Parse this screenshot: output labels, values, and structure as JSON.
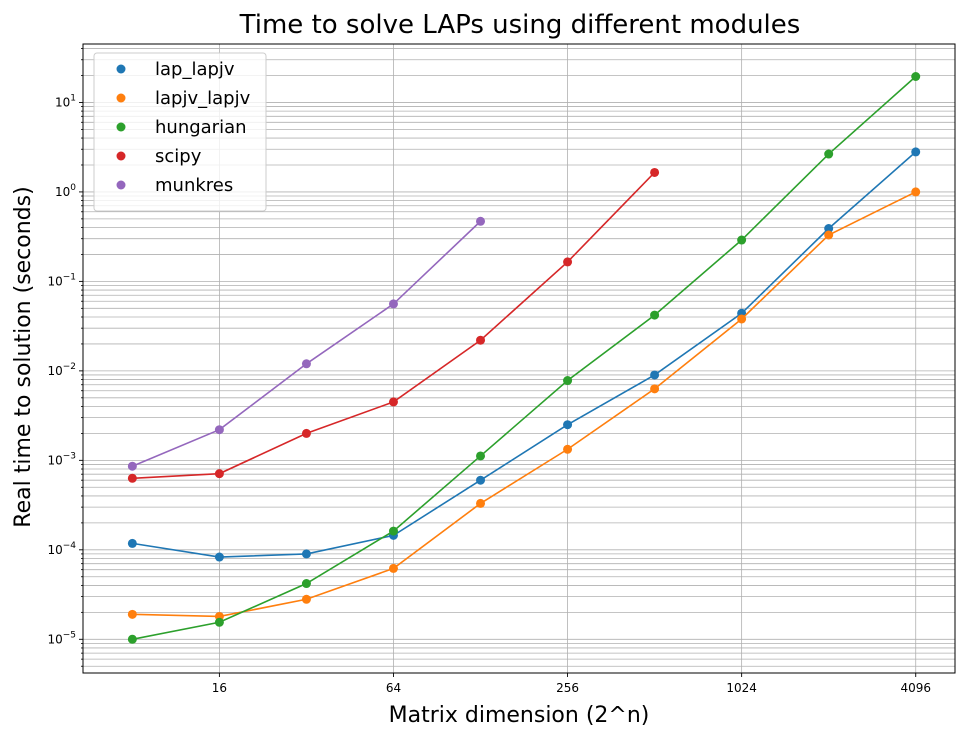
{
  "chart_data": {
    "type": "line",
    "title": "Time to solve LAPs using different modules",
    "xlabel": "Matrix dimension (2^n)",
    "ylabel": "Real time to solution (seconds)",
    "x_scale": "log2",
    "y_scale": "log10",
    "xlim": [
      5.4,
      5600
    ],
    "ylim": [
      4.2e-06,
      45
    ],
    "x_ticks": [
      {
        "value": 16,
        "label": "16"
      },
      {
        "value": 64,
        "label": "64"
      },
      {
        "value": 256,
        "label": "256"
      },
      {
        "value": 1024,
        "label": "1024"
      },
      {
        "value": 4096,
        "label": "4096"
      }
    ],
    "y_ticks": [
      {
        "value": 1e-05,
        "base": "10",
        "exp": "−5"
      },
      {
        "value": 0.0001,
        "base": "10",
        "exp": "−4"
      },
      {
        "value": 0.001,
        "base": "10",
        "exp": "−3"
      },
      {
        "value": 0.01,
        "base": "10",
        "exp": "−2"
      },
      {
        "value": 0.1,
        "base": "10",
        "exp": "−1"
      },
      {
        "value": 1,
        "base": "10",
        "exp": "0"
      },
      {
        "value": 10,
        "base": "10",
        "exp": "1"
      }
    ],
    "grid": true,
    "legend_position": "top-left",
    "series": [
      {
        "name": "lap_lapjv",
        "color": "#1f77b4",
        "x": [
          8,
          16,
          32,
          64,
          128,
          256,
          512,
          1024,
          2048,
          4096
        ],
        "y": [
          0.000118,
          8.3e-05,
          9e-05,
          0.000145,
          0.0006,
          0.0025,
          0.009,
          0.044,
          0.39,
          2.8
        ]
      },
      {
        "name": "lapjv_lapjv",
        "color": "#ff7f0e",
        "x": [
          8,
          16,
          32,
          64,
          128,
          256,
          512,
          1024,
          2048,
          4096
        ],
        "y": [
          1.9e-05,
          1.8e-05,
          2.8e-05,
          6.2e-05,
          0.00033,
          0.00133,
          0.0063,
          0.038,
          0.33,
          1.0
        ]
      },
      {
        "name": "hungarian",
        "color": "#2ca02c",
        "x": [
          8,
          16,
          32,
          64,
          128,
          256,
          512,
          1024,
          2048,
          4096
        ],
        "y": [
          1e-05,
          1.55e-05,
          4.2e-05,
          0.000162,
          0.00112,
          0.0078,
          0.042,
          0.29,
          2.65,
          19.5
        ]
      },
      {
        "name": "scipy",
        "color": "#d62728",
        "x": [
          8,
          16,
          32,
          64,
          128,
          256,
          512
        ],
        "y": [
          0.00063,
          0.00071,
          0.002,
          0.0045,
          0.022,
          0.165,
          1.65
        ]
      },
      {
        "name": "munkres",
        "color": "#9467bd",
        "x": [
          8,
          16,
          32,
          64,
          128
        ],
        "y": [
          0.00086,
          0.0022,
          0.012,
          0.056,
          0.47
        ]
      }
    ]
  }
}
